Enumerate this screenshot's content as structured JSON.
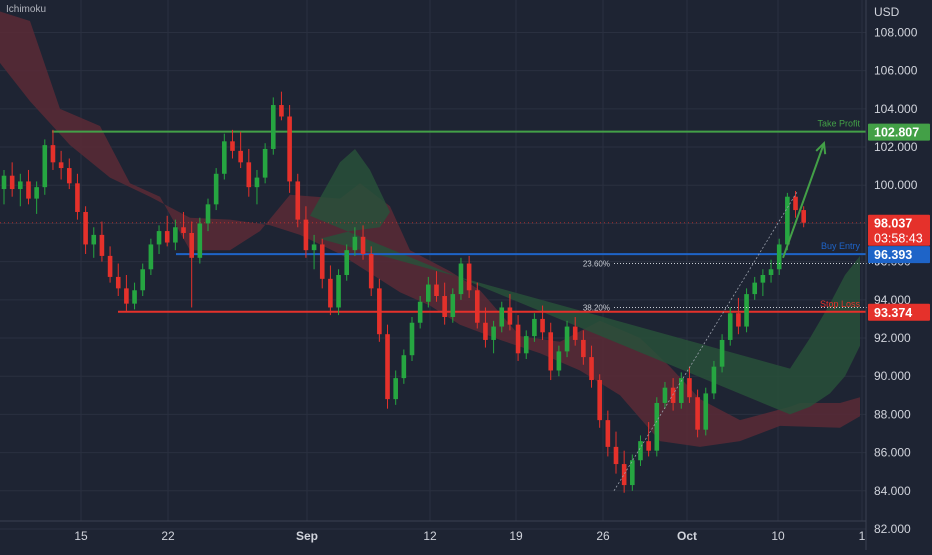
{
  "indicator": "Ichimoku",
  "currency": "USD",
  "colors": {
    "background": "#1e2433",
    "axis_bg": "#1e2433",
    "grid": "#2a3040",
    "text": "#d1d4dc",
    "up": "#26a641",
    "down": "#e5312b",
    "take_profit": "#43a047",
    "buy_entry": "#1e64c8",
    "stop_loss": "#e5312b",
    "cloud_bear": "#5a2a36",
    "cloud_bull": "#28503a",
    "price_tag": "#e5312b"
  },
  "chart_data": {
    "type": "candlestick",
    "y_axis": {
      "ticks": [
        "108.000",
        "106.000",
        "104.000",
        "102.000",
        "100.000",
        "98.000",
        "96.000",
        "94.000",
        "92.000",
        "90.000",
        "88.000",
        "86.000",
        "84.000",
        "82.000"
      ],
      "range": [
        80.9,
        109.7
      ]
    },
    "x_axis": {
      "ticks": [
        "15",
        "22",
        "Sep",
        "12",
        "19",
        "26",
        "Oct",
        "10",
        "1"
      ]
    },
    "levels": {
      "take_profit": {
        "label": "Take Profit",
        "value": 102.807,
        "value_text": "102.807"
      },
      "buy_entry": {
        "label": "Buy Entry",
        "value": 96.393,
        "value_text": "96.393"
      },
      "stop_loss": {
        "label": "Stop Loss",
        "value": 93.374,
        "value_text": "93.374"
      }
    },
    "current_price": {
      "value": 98.037,
      "value_text": "98.037",
      "countdown": "03:58:43"
    },
    "fibonacci": [
      {
        "label": "23.60%",
        "value": 95.9
      },
      {
        "label": "38.20%",
        "value": 93.6
      }
    ],
    "candles": [
      [
        99.8,
        100.8,
        99,
        100.5
      ],
      [
        100.5,
        101.2,
        99.4,
        99.8
      ],
      [
        99.8,
        100.6,
        98.9,
        100.2
      ],
      [
        100.2,
        100.8,
        99,
        99.3
      ],
      [
        99.3,
        100.2,
        98.5,
        99.9
      ],
      [
        99.9,
        102.4,
        99.5,
        102.1
      ],
      [
        102.1,
        102.9,
        100.8,
        101.2
      ],
      [
        101.2,
        101.8,
        100.3,
        100.9
      ],
      [
        100.9,
        101.4,
        99.8,
        100.1
      ],
      [
        100.1,
        100.6,
        98.2,
        98.6
      ],
      [
        98.6,
        98.9,
        96.4,
        96.9
      ],
      [
        96.9,
        97.8,
        96.2,
        97.4
      ],
      [
        97.4,
        98.1,
        96,
        96.3
      ],
      [
        96.3,
        96.8,
        94.9,
        95.2
      ],
      [
        95.2,
        95.9,
        94.2,
        94.6
      ],
      [
        94.6,
        95.3,
        93.4,
        93.8
      ],
      [
        93.8,
        94.9,
        93.5,
        94.5
      ],
      [
        94.5,
        95.9,
        94.2,
        95.6
      ],
      [
        95.6,
        97.2,
        95.3,
        96.9
      ],
      [
        96.9,
        97.9,
        96.4,
        97.6
      ],
      [
        97.6,
        98.4,
        96.8,
        97
      ],
      [
        97,
        98.2,
        96.6,
        97.8
      ],
      [
        97.8,
        98.6,
        97.2,
        97.5
      ],
      [
        97.5,
        98.1,
        93.6,
        96.2
      ],
      [
        96.2,
        98.3,
        95.9,
        98
      ],
      [
        98,
        99.3,
        97.6,
        99
      ],
      [
        99,
        100.9,
        98.7,
        100.6
      ],
      [
        100.6,
        102.7,
        100.3,
        102.3
      ],
      [
        102.3,
        102.9,
        101.4,
        101.8
      ],
      [
        101.8,
        102.8,
        100.9,
        101.2
      ],
      [
        101.2,
        101.9,
        99.4,
        99.9
      ],
      [
        99.9,
        100.8,
        99,
        100.4
      ],
      [
        100.4,
        102.2,
        100.1,
        101.9
      ],
      [
        101.9,
        104.6,
        101.6,
        104.2
      ],
      [
        104.2,
        104.9,
        103.4,
        103.6
      ],
      [
        103.6,
        104.2,
        99.6,
        100.2
      ],
      [
        100.2,
        100.6,
        97.8,
        98.2
      ],
      [
        98.2,
        98.9,
        96.2,
        96.6
      ],
      [
        96.6,
        97.4,
        95.6,
        96.9
      ],
      [
        96.9,
        97.2,
        94.6,
        95.1
      ],
      [
        95.1,
        95.8,
        93.2,
        93.6
      ],
      [
        93.6,
        95.6,
        93.2,
        95.3
      ],
      [
        95.3,
        96.9,
        95,
        96.6
      ],
      [
        96.6,
        97.8,
        96.3,
        97.3
      ],
      [
        97.3,
        97.9,
        96.1,
        96.4
      ],
      [
        96.4,
        96.8,
        94.2,
        94.6
      ],
      [
        94.6,
        95.1,
        91.8,
        92.2
      ],
      [
        92.2,
        92.7,
        88.3,
        88.8
      ],
      [
        88.8,
        90.3,
        88.5,
        89.9
      ],
      [
        89.9,
        91.4,
        89.6,
        91.1
      ],
      [
        91.1,
        93.1,
        90.8,
        92.8
      ],
      [
        92.8,
        94.2,
        92.5,
        93.9
      ],
      [
        93.9,
        95.2,
        93.6,
        94.8
      ],
      [
        94.8,
        95.5,
        93.9,
        94.2
      ],
      [
        94.2,
        94.9,
        92.7,
        93.1
      ],
      [
        93.1,
        94.6,
        92.8,
        94.3
      ],
      [
        94.3,
        96.2,
        94,
        95.9
      ],
      [
        95.9,
        96.3,
        94.1,
        94.5
      ],
      [
        94.5,
        94.9,
        92.5,
        92.8
      ],
      [
        92.8,
        93.6,
        91.5,
        91.9
      ],
      [
        91.9,
        92.9,
        91.2,
        92.6
      ],
      [
        92.6,
        93.9,
        92.3,
        93.6
      ],
      [
        93.6,
        94.3,
        92.4,
        92.7
      ],
      [
        92.7,
        93.2,
        90.8,
        91.2
      ],
      [
        91.2,
        92.4,
        90.9,
        92.1
      ],
      [
        92.1,
        93.3,
        91.8,
        93
      ],
      [
        93,
        93.7,
        91.9,
        92.3
      ],
      [
        92.3,
        92.8,
        89.8,
        90.3
      ],
      [
        90.3,
        91.6,
        90,
        91.3
      ],
      [
        91.3,
        92.9,
        91,
        92.6
      ],
      [
        92.6,
        93.1,
        91.6,
        91.9
      ],
      [
        91.9,
        92.4,
        90.6,
        91
      ],
      [
        91,
        91.6,
        89.4,
        89.8
      ],
      [
        89.8,
        90.1,
        87.3,
        87.7
      ],
      [
        87.7,
        88.2,
        85.8,
        86.3
      ],
      [
        86.3,
        87.1,
        84.9,
        85.4
      ],
      [
        85.4,
        86.1,
        83.9,
        84.3
      ],
      [
        84.3,
        85.9,
        84,
        85.6
      ],
      [
        85.6,
        86.9,
        85.3,
        86.6
      ],
      [
        86.6,
        87.6,
        85.8,
        86.1
      ],
      [
        86.1,
        88.9,
        85.8,
        88.6
      ],
      [
        88.6,
        89.7,
        88.3,
        89.4
      ],
      [
        89.4,
        89.9,
        88.2,
        88.6
      ],
      [
        88.6,
        90.2,
        88.3,
        89.9
      ],
      [
        89.9,
        90.5,
        88.6,
        88.9
      ],
      [
        88.9,
        89.3,
        86.8,
        87.2
      ],
      [
        87.2,
        89.4,
        86.9,
        89.1
      ],
      [
        89.1,
        90.8,
        88.8,
        90.5
      ],
      [
        90.5,
        92.2,
        90.2,
        91.9
      ],
      [
        91.9,
        93.6,
        91.6,
        93.3
      ],
      [
        93.3,
        94.1,
        92.2,
        92.6
      ],
      [
        92.6,
        94.6,
        92.3,
        94.3
      ],
      [
        94.3,
        95.2,
        94,
        94.9
      ],
      [
        94.9,
        95.6,
        94.2,
        95.3
      ],
      [
        95.3,
        96.1,
        94.9,
        95.6
      ],
      [
        95.6,
        97.2,
        95.3,
        96.9
      ],
      [
        96.9,
        99.6,
        96.6,
        99.4
      ],
      [
        99.4,
        99.7,
        98.3,
        98.7
      ],
      [
        98.7,
        98.9,
        97.8,
        98.037
      ]
    ],
    "candle_layout": {
      "x0": 4,
      "step": 8.16
    },
    "cloud": {
      "bear": [
        [
          0,
          109.1
        ],
        [
          30,
          108.6
        ],
        [
          60,
          104.0
        ],
        [
          100,
          103.1
        ],
        [
          130,
          100.1
        ],
        [
          160,
          99.4
        ],
        [
          190,
          96.6
        ],
        [
          230,
          96.6
        ],
        [
          260,
          97.6
        ],
        [
          290,
          99.5
        ],
        [
          340,
          99.3
        ],
        [
          360,
          100.1
        ],
        [
          390,
          98.9
        ],
        [
          410,
          96.6
        ],
        [
          450,
          95.5
        ],
        [
          480,
          94.5
        ],
        [
          520,
          92.1
        ],
        [
          560,
          91.8
        ],
        [
          600,
          92.9
        ],
        [
          640,
          92.0
        ],
        [
          670,
          90.5
        ],
        [
          700,
          88.8
        ],
        [
          740,
          87.7
        ],
        [
          790,
          88.4
        ],
        [
          800,
          88.6
        ],
        [
          840,
          88.6
        ],
        [
          860,
          88.9
        ],
        [
          860,
          87.9
        ],
        [
          840,
          87.3
        ],
        [
          780,
          87.4
        ],
        [
          740,
          86.6
        ],
        [
          700,
          86.3
        ],
        [
          660,
          86.6
        ],
        [
          620,
          89.0
        ],
        [
          580,
          90.3
        ],
        [
          540,
          91.2
        ],
        [
          500,
          91.9
        ],
        [
          460,
          92.7
        ],
        [
          430,
          93.7
        ],
        [
          400,
          94.4
        ],
        [
          370,
          95.4
        ],
        [
          340,
          96.4
        ],
        [
          300,
          97.4
        ],
        [
          270,
          97.9
        ],
        [
          230,
          98.2
        ],
        [
          190,
          98.3
        ],
        [
          150,
          99.4
        ],
        [
          110,
          100.4
        ],
        [
          70,
          102.1
        ],
        [
          30,
          104.4
        ],
        [
          0,
          106.4
        ]
      ],
      "bull": [
        [
          310,
          98.4
        ],
        [
          340,
          101.2
        ],
        [
          355,
          101.9
        ],
        [
          370,
          100.8
        ],
        [
          390,
          98.6
        ],
        [
          380,
          97.8
        ],
        [
          350,
          97.6
        ],
        [
          320,
          97.2
        ],
        [
          790,
          90.4
        ],
        [
          810,
          92.0
        ],
        [
          830,
          93.8
        ],
        [
          845,
          95.3
        ],
        [
          860,
          96.3
        ],
        [
          860,
          91.6
        ],
        [
          845,
          90.0
        ],
        [
          830,
          89.1
        ],
        [
          810,
          88.4
        ],
        [
          790,
          88.0
        ]
      ]
    }
  }
}
